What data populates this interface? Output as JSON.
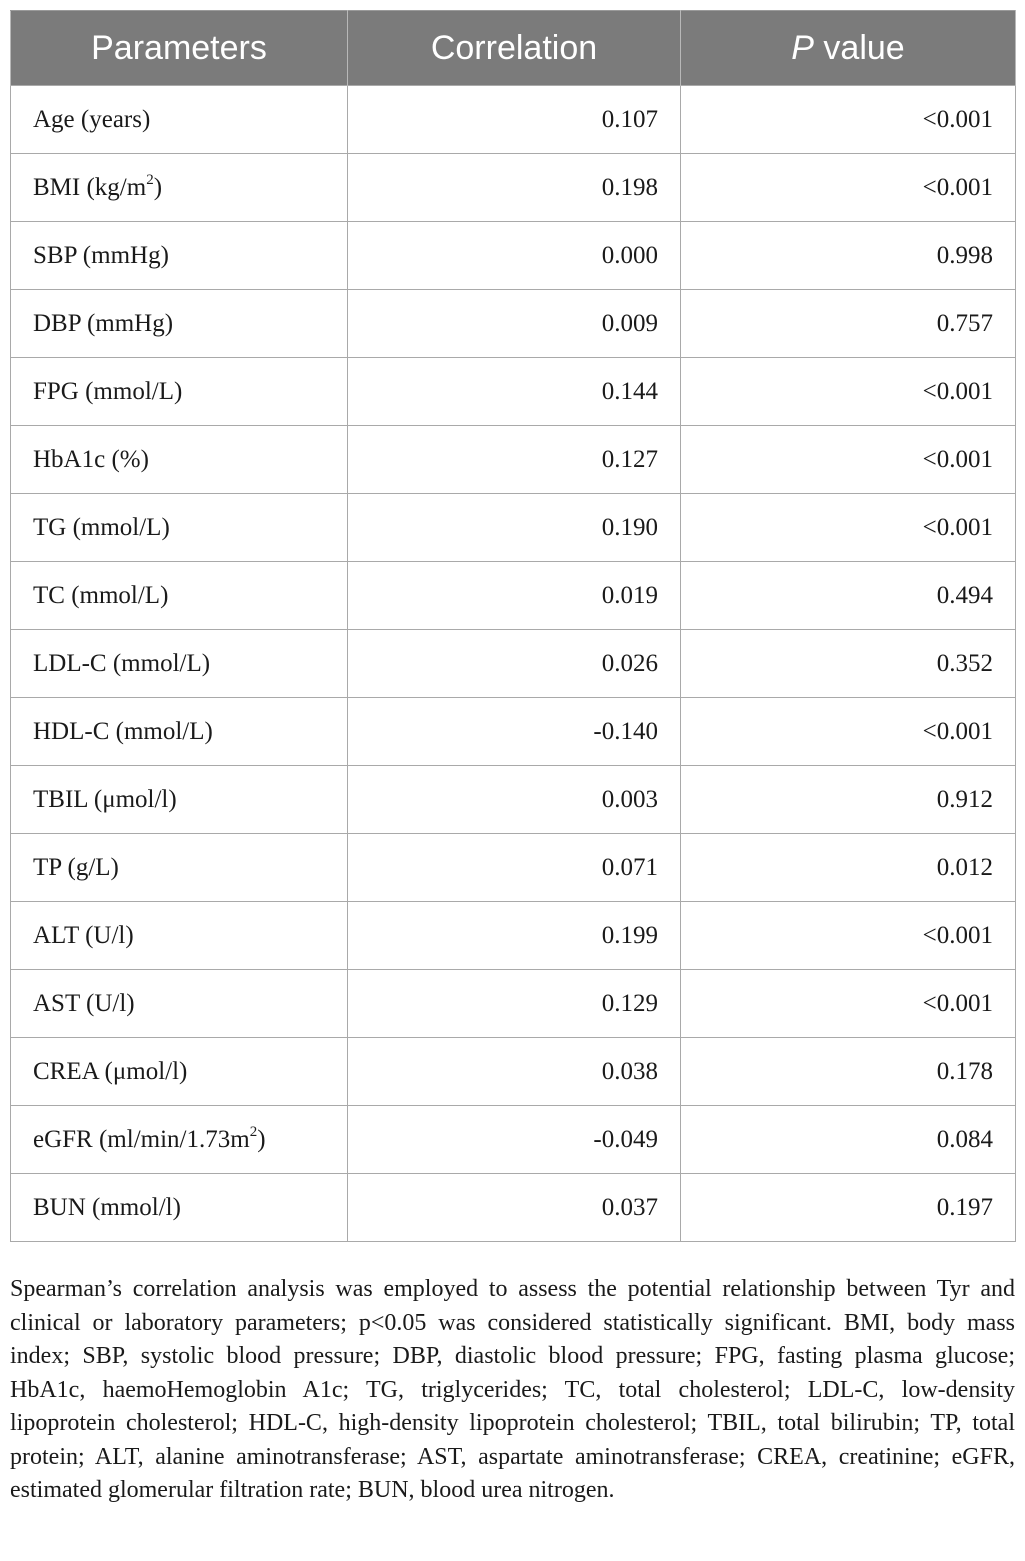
{
  "table": {
    "headers": {
      "parameters": "Parameters",
      "correlation": "Correlation",
      "p_italic": "P",
      "p_rest": " value"
    },
    "rows": [
      {
        "param": "Age (years)",
        "sup": "",
        "param_tail": "",
        "correlation": "0.107",
        "p": "<0.001"
      },
      {
        "param": "BMI (kg/m",
        "sup": "2",
        "param_tail": ")",
        "correlation": "0.198",
        "p": "<0.001"
      },
      {
        "param": "SBP (mmHg)",
        "sup": "",
        "param_tail": "",
        "correlation": "0.000",
        "p": "0.998"
      },
      {
        "param": "DBP (mmHg)",
        "sup": "",
        "param_tail": "",
        "correlation": "0.009",
        "p": "0.757"
      },
      {
        "param": "FPG (mmol/L)",
        "sup": "",
        "param_tail": "",
        "correlation": "0.144",
        "p": "<0.001"
      },
      {
        "param": "HbA1c (%)",
        "sup": "",
        "param_tail": "",
        "correlation": "0.127",
        "p": "<0.001"
      },
      {
        "param": "TG (mmol/L)",
        "sup": "",
        "param_tail": "",
        "correlation": "0.190",
        "p": "<0.001"
      },
      {
        "param": "TC (mmol/L)",
        "sup": "",
        "param_tail": "",
        "correlation": "0.019",
        "p": "0.494"
      },
      {
        "param": "LDL-C (mmol/L)",
        "sup": "",
        "param_tail": "",
        "correlation": "0.026",
        "p": "0.352"
      },
      {
        "param": "HDL-C (mmol/L)",
        "sup": "",
        "param_tail": "",
        "correlation": "-0.140",
        "p": "<0.001"
      },
      {
        "param": "TBIL (μmol/l)",
        "sup": "",
        "param_tail": "",
        "correlation": "0.003",
        "p": "0.912"
      },
      {
        "param": "TP (g/L)",
        "sup": "",
        "param_tail": "",
        "correlation": "0.071",
        "p": "0.012"
      },
      {
        "param": "ALT (U/l)",
        "sup": "",
        "param_tail": "",
        "correlation": "0.199",
        "p": "<0.001"
      },
      {
        "param": "AST (U/l)",
        "sup": "",
        "param_tail": "",
        "correlation": "0.129",
        "p": "<0.001"
      },
      {
        "param": "CREA (μmol/l)",
        "sup": "",
        "param_tail": "",
        "correlation": "0.038",
        "p": "0.178"
      },
      {
        "param": "eGFR (ml/min/1.73m",
        "sup": "2",
        "param_tail": ")",
        "correlation": "-0.049",
        "p": "0.084"
      },
      {
        "param": "BUN (mmol/l)",
        "sup": "",
        "param_tail": "",
        "correlation": "0.037",
        "p": "0.197"
      }
    ]
  },
  "footnote": "Spearman’s correlation analysis was employed to assess the potential relationship between Tyr and clinical or laboratory parameters; p<0.05 was considered statistically significant. BMI, body mass index; SBP, systolic blood pressure; DBP, diastolic blood pressure; FPG, fasting plasma glucose; HbA1c, haemoHemoglobin A1c; TG, triglycerides; TC, total cholesterol; LDL-C, low-density lipoprotein cholesterol; HDL-C, high-density lipoprotein cholesterol; TBIL, total bilirubin; TP, total protein; ALT, alanine aminotransferase; AST, aspartate aminotransferase; CREA, creatinine; eGFR, estimated glomerular filtration rate; BUN, blood urea nitrogen."
}
